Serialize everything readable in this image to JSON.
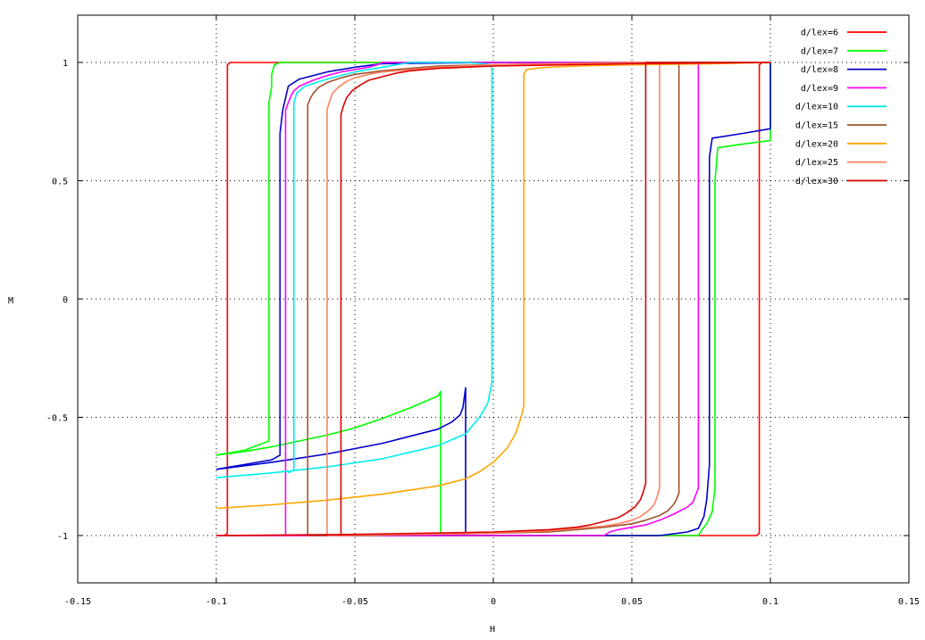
{
  "chart_data": {
    "type": "line",
    "xlabel": "H",
    "ylabel": "M",
    "xlim": [
      -0.15,
      0.15
    ],
    "ylim": [
      -1.2,
      1.2
    ],
    "xticks": [
      -0.15,
      -0.1,
      -0.05,
      0,
      0.05,
      0.1,
      0.15
    ],
    "xtick_labels": [
      "-0.15",
      "-0.1",
      "-0.05",
      "0",
      "0.05",
      "0.1",
      "0.15"
    ],
    "yticks": [
      -1,
      -0.5,
      0,
      0.5,
      1
    ],
    "ytick_labels": [
      "-1",
      "-0.5",
      "0",
      "0.5",
      "1"
    ],
    "grid": true,
    "legend_position": "top-right",
    "series": [
      {
        "name": "d/lex=6",
        "color": "#ff0000",
        "x": [
          -0.1,
          -0.097,
          -0.096,
          -0.096,
          -0.095,
          -0.09,
          -0.05,
          0,
          0.05,
          0.1,
          0.1,
          0.097,
          0.096,
          0.096,
          0.095,
          0.09,
          0.05,
          0,
          -0.05,
          -0.1
        ],
        "y": [
          -1,
          -1,
          -0.99,
          0.99,
          1,
          1,
          1,
          1,
          1,
          1,
          1,
          1,
          0.99,
          -0.99,
          -1,
          -1,
          -1,
          -1,
          -1,
          -1
        ]
      },
      {
        "name": "d/lex=7",
        "color": "#00ff00",
        "x": [
          -0.1,
          -0.09,
          -0.08,
          -0.07,
          -0.06,
          -0.05,
          -0.04,
          -0.03,
          -0.02,
          -0.019,
          -0.019,
          -0.02,
          -0.03,
          -0.05,
          0,
          0.05,
          0.074,
          0.075,
          0.077,
          0.079,
          0.08,
          0.08,
          0.081,
          0.09,
          0.1,
          0.1,
          0.09,
          0.05,
          -0.01,
          -0.04,
          -0.06,
          -0.077,
          -0.079,
          -0.08,
          -0.08,
          -0.081,
          -0.081,
          -0.09,
          -0.1
        ],
        "y": [
          -0.66,
          -0.645,
          -0.625,
          -0.6,
          -0.575,
          -0.545,
          -0.505,
          -0.46,
          -0.41,
          -0.39,
          -0.99,
          -1,
          -1,
          -1,
          -1,
          -1,
          -1,
          -0.98,
          -0.95,
          -0.9,
          -0.8,
          0.5,
          0.64,
          0.655,
          0.67,
          1,
          1,
          1,
          1,
          1,
          1,
          1,
          0.99,
          0.95,
          0.9,
          0.83,
          -0.6,
          -0.64,
          -0.66
        ]
      },
      {
        "name": "d/lex=8",
        "color": "#0000cc",
        "x": [
          -0.1,
          -0.08,
          -0.06,
          -0.04,
          -0.03,
          -0.02,
          -0.015,
          -0.012,
          -0.011,
          -0.01,
          -0.01,
          -0.011,
          -0.02,
          -0.04,
          0,
          0.03,
          0.05,
          0.06,
          0.07,
          0.074,
          0.076,
          0.077,
          0.078,
          0.078,
          0.079,
          0.09,
          0.1,
          0.1,
          0.09,
          0.05,
          0,
          -0.04,
          -0.05,
          -0.06,
          -0.07,
          -0.074,
          -0.075,
          -0.076,
          -0.077,
          -0.077,
          -0.08,
          -0.09,
          -0.1
        ],
        "y": [
          -0.72,
          -0.69,
          -0.655,
          -0.61,
          -0.58,
          -0.55,
          -0.52,
          -0.49,
          -0.46,
          -0.375,
          -0.99,
          -1,
          -1,
          -1,
          -1,
          -1,
          -1,
          -1,
          -0.985,
          -0.97,
          -0.92,
          -0.85,
          -0.7,
          0.6,
          0.68,
          0.7,
          0.72,
          1,
          1,
          1,
          1,
          0.995,
          0.98,
          0.96,
          0.93,
          0.9,
          0.85,
          0.8,
          0.7,
          -0.66,
          -0.68,
          -0.7,
          -0.72
        ],
        "note_x_end": 0.099
      },
      {
        "name": "d/lex=9",
        "color": "#ff00ff",
        "x": [
          -0.1,
          -0.08,
          -0.075,
          -0.075,
          -0.074,
          -0.073,
          -0.072,
          -0.07,
          -0.065,
          -0.06,
          -0.055,
          -0.05,
          -0.045,
          -0.042,
          -0.04,
          0,
          0.05,
          0.1,
          0.1,
          0.074,
          0.074,
          0.073,
          0.072,
          0.07,
          0.065,
          0.06,
          0.055,
          0.05,
          0.045,
          0.042,
          0.04,
          0,
          -0.05,
          -0.1
        ],
        "y": [
          -1,
          -1,
          -1,
          0.8,
          0.83,
          0.86,
          0.88,
          0.9,
          0.925,
          0.945,
          0.96,
          0.97,
          0.98,
          0.99,
          1,
          1,
          1,
          1,
          1,
          1,
          -0.8,
          -0.83,
          -0.86,
          -0.88,
          -0.91,
          -0.935,
          -0.955,
          -0.965,
          -0.975,
          -0.985,
          -1,
          -1,
          -1,
          -1
        ]
      },
      {
        "name": "d/lex=10",
        "color": "#00eeee",
        "x": [
          -0.1,
          -0.08,
          -0.06,
          -0.04,
          -0.02,
          -0.01,
          -0.005,
          -0.002,
          -0.0005,
          -0.0005,
          -0.001,
          -0.004,
          -0.01,
          -0.02,
          -0.03,
          -0.035,
          -0.04,
          -0.05,
          -0.06,
          -0.068,
          -0.071,
          -0.072,
          -0.072,
          -0.073,
          -0.074
        ],
        "y": [
          -0.755,
          -0.735,
          -0.71,
          -0.675,
          -0.62,
          -0.57,
          -0.5,
          -0.44,
          -0.35,
          0.97,
          0.99,
          0.995,
          1,
          1,
          1,
          0.99,
          0.98,
          0.96,
          0.93,
          0.9,
          0.87,
          0.83,
          -0.72,
          -0.73,
          -0.735
        ]
      },
      {
        "name": "d/lex=15",
        "color": "#a0522d",
        "x": [
          -0.067,
          -0.067,
          -0.066,
          -0.065,
          -0.063,
          -0.06,
          -0.055,
          -0.05,
          -0.04,
          -0.03,
          -0.02,
          0,
          0.05,
          0.1,
          0.067,
          0.067,
          0.066,
          0.065,
          0.063,
          0.06,
          0.055,
          0.05,
          0.04,
          0.03,
          0.02,
          0,
          -0.05,
          -0.067
        ],
        "y": [
          -1,
          0.82,
          0.85,
          0.87,
          0.895,
          0.915,
          0.935,
          0.95,
          0.965,
          0.975,
          0.985,
          0.99,
          1,
          1,
          1,
          -0.82,
          -0.85,
          -0.87,
          -0.895,
          -0.915,
          -0.935,
          -0.95,
          -0.965,
          -0.975,
          -0.985,
          -0.99,
          -1,
          -1
        ]
      },
      {
        "name": "d/lex=20",
        "color": "#ffa500",
        "x": [
          -0.1,
          -0.08,
          -0.06,
          -0.04,
          -0.02,
          -0.01,
          -0.005,
          0,
          0.005,
          0.008,
          0.01,
          0.011,
          0.011,
          0.012,
          0.015,
          0.02,
          0.03,
          0.05,
          0.08,
          0.1,
          0.1
        ],
        "y": [
          -0.885,
          -0.87,
          -0.85,
          -0.825,
          -0.79,
          -0.76,
          -0.73,
          -0.69,
          -0.63,
          -0.57,
          -0.5,
          -0.45,
          0.95,
          0.97,
          0.975,
          0.98,
          0.985,
          0.99,
          0.995,
          1,
          1
        ]
      },
      {
        "name": "d/lex=25",
        "color": "#ff8060",
        "x": [
          -0.06,
          -0.06,
          -0.059,
          -0.058,
          -0.056,
          -0.053,
          -0.05,
          -0.045,
          -0.04,
          -0.03,
          -0.02,
          0,
          0.05,
          0.06,
          0.06,
          0.059,
          0.058,
          0.056,
          0.053,
          0.05,
          0.045,
          0.04,
          0.03,
          0.02,
          0,
          -0.06
        ],
        "y": [
          -1,
          0.8,
          0.84,
          0.87,
          0.895,
          0.92,
          0.935,
          0.95,
          0.96,
          0.97,
          0.98,
          0.99,
          1,
          1,
          -0.8,
          -0.84,
          -0.87,
          -0.895,
          -0.92,
          -0.935,
          -0.95,
          -0.96,
          -0.97,
          -0.98,
          -0.99,
          -1
        ]
      },
      {
        "name": "d/lex=30",
        "color": "#dd0000",
        "x": [
          -0.055,
          -0.055,
          -0.054,
          -0.053,
          -0.051,
          -0.048,
          -0.045,
          -0.04,
          -0.035,
          -0.03,
          -0.02,
          0,
          0.05,
          0.1,
          0.055,
          0.055,
          0.054,
          0.053,
          0.051,
          0.048,
          0.045,
          0.04,
          0.035,
          0.03,
          0.02,
          0,
          -0.05,
          -0.1
        ],
        "y": [
          -1,
          0.78,
          0.82,
          0.85,
          0.88,
          0.905,
          0.925,
          0.94,
          0.955,
          0.965,
          0.975,
          0.985,
          0.995,
          1,
          1,
          -0.78,
          -0.82,
          -0.85,
          -0.88,
          -0.905,
          -0.925,
          -0.94,
          -0.955,
          -0.965,
          -0.975,
          -0.985,
          -0.995,
          -1
        ]
      }
    ]
  }
}
